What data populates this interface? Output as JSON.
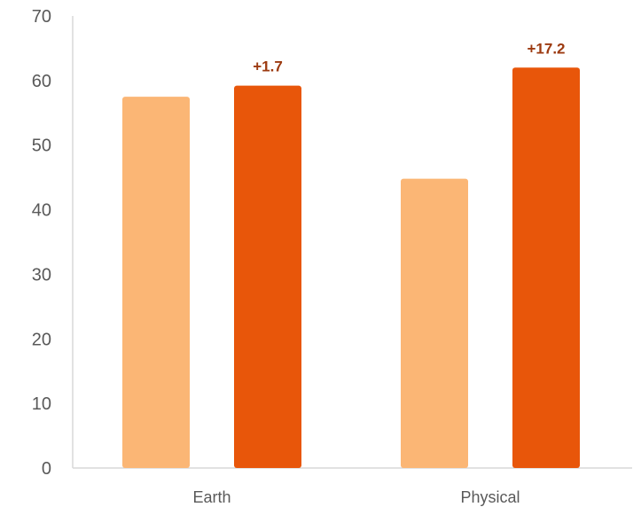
{
  "chart_data": {
    "type": "bar",
    "title": "",
    "xlabel": "",
    "ylabel": "",
    "categories": [
      "Earth",
      "Physical"
    ],
    "series": [
      {
        "color": "#fbb675",
        "values": [
          57.5,
          44.8
        ]
      },
      {
        "color": "#e8560a",
        "values": [
          59.2,
          62.0
        ]
      }
    ],
    "data_labels": [
      "+1.7",
      "+17.2"
    ],
    "data_label_color": "#9c3a10",
    "ylim": [
      0,
      70
    ],
    "yticks": [
      0,
      10,
      20,
      30,
      40,
      50,
      60,
      70
    ],
    "grid": false,
    "legend": "none"
  }
}
